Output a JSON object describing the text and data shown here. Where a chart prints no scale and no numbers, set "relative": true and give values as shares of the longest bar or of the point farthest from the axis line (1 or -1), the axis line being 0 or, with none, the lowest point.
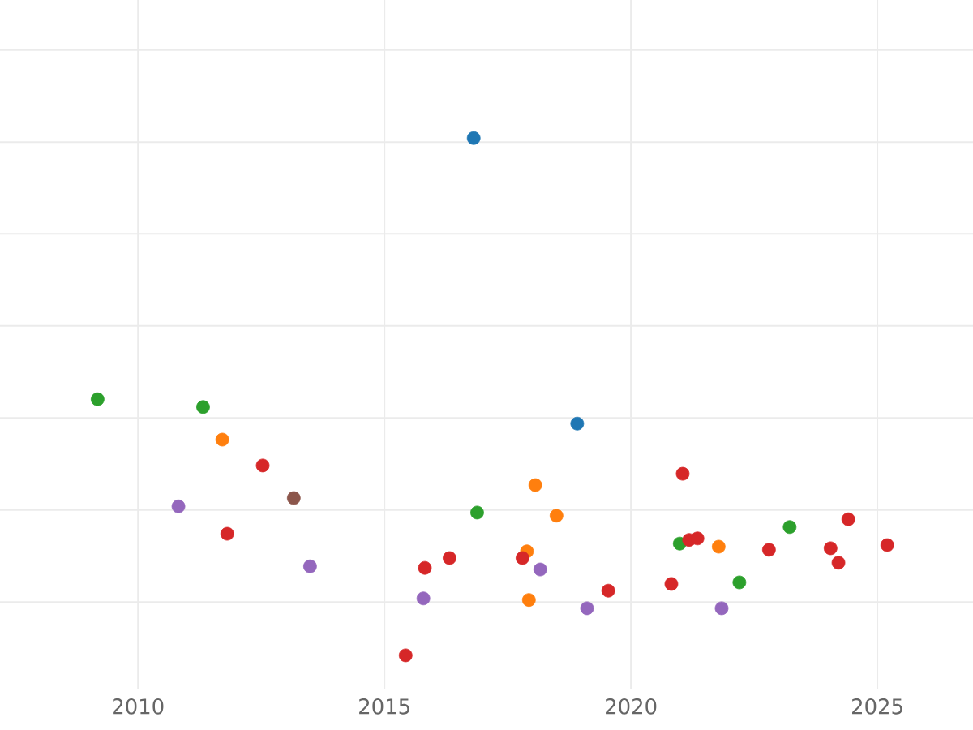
{
  "chart_data": {
    "type": "scatter",
    "relative": true,
    "grid": true,
    "xlim": [
      2007.2,
      2026.94
    ],
    "xticks": [
      2010,
      2015,
      2020,
      2025
    ],
    "series": [
      {
        "color": "#1f77b4",
        "x": [
          2016.81,
          2018.91
        ],
        "values": [
          1,
          0.448
        ]
      },
      {
        "color": "#2ca02c",
        "x": [
          2009.18,
          2011.32,
          2016.88,
          2020.99,
          2023.22,
          2022.2
        ],
        "values": [
          0.495,
          0.48,
          0.276,
          0.216,
          0.248,
          0.141
        ]
      },
      {
        "color": "#ff7f0e",
        "x": [
          2011.71,
          2018.06,
          2018.49,
          2017.89,
          2017.93,
          2021.78
        ],
        "values": [
          0.417,
          0.329,
          0.27,
          0.201,
          0.107,
          0.21
        ]
      },
      {
        "color": "#d62728",
        "x": [
          2012.53,
          2011.81,
          2015.43,
          2015.82,
          2016.32,
          2017.8,
          2019.54,
          2021.05,
          2020.82,
          2021.18,
          2021.35,
          2022.8,
          2024.05,
          2024.21,
          2024.41,
          2025.2
        ],
        "values": [
          0.367,
          0.235,
          0,
          0.169,
          0.188,
          0.188,
          0.125,
          0.351,
          0.138,
          0.223,
          0.226,
          0.204,
          0.207,
          0.179,
          0.263,
          0.213
        ]
      },
      {
        "color": "#9467bd",
        "x": [
          2010.82,
          2013.49,
          2015.79,
          2018.16,
          2019.11,
          2021.84
        ],
        "values": [
          0.288,
          0.172,
          0.11,
          0.166,
          0.091,
          0.091
        ]
      },
      {
        "color": "#8c564b",
        "x": [
          2013.16
        ],
        "values": [
          0.304
        ]
      }
    ]
  }
}
